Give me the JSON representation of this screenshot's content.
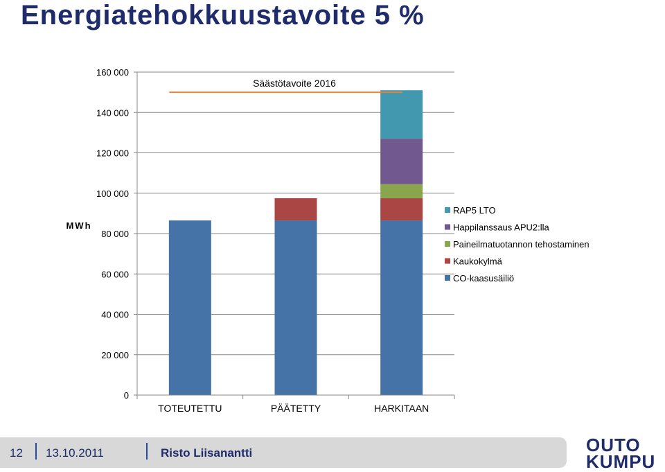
{
  "slide": {
    "title": "Energiatehokkuustavoite 5 %"
  },
  "footer": {
    "page_number": "12",
    "date": "13.10.2011",
    "author": "Risto Liisanantti"
  },
  "logo": {
    "line1": "OUTO",
    "line2": "KUMPU"
  },
  "chart_data": {
    "type": "bar",
    "stacked": true,
    "title": "",
    "xlabel": "",
    "ylabel": "MWh",
    "ylim": [
      0,
      160000
    ],
    "yticks": [
      0,
      20000,
      40000,
      60000,
      80000,
      100000,
      120000,
      140000,
      160000
    ],
    "ytick_labels": [
      "0",
      "20 000",
      "40 000",
      "60 000",
      "80 000",
      "100 000",
      "120 000",
      "140 000",
      "160 000"
    ],
    "categories": [
      "TOTEUTETTU",
      "PÄÄTETTY",
      "HARKITAAN"
    ],
    "series": [
      {
        "name": "CO-kaasusäiliö",
        "color": "#4572a7",
        "values": [
          86500,
          86500,
          86500
        ]
      },
      {
        "name": "Kaukokylmä",
        "color": "#aa4643",
        "values": [
          0,
          11000,
          11000
        ]
      },
      {
        "name": "Paineilmatuotannon tehostaminen",
        "color": "#89a54e",
        "values": [
          0,
          0,
          7000
        ]
      },
      {
        "name": "Happilanssaus APU2:lla",
        "color": "#71588f",
        "values": [
          0,
          0,
          22500
        ]
      },
      {
        "name": "RAP5 LTO",
        "color": "#4198af",
        "values": [
          0,
          0,
          24000
        ]
      }
    ],
    "legend_position": "right",
    "grid": true,
    "target_line": {
      "label": "Säästötavoite 2016",
      "value": 150000,
      "color": "#e8823a",
      "from_category": 0,
      "to_category": 2
    }
  }
}
